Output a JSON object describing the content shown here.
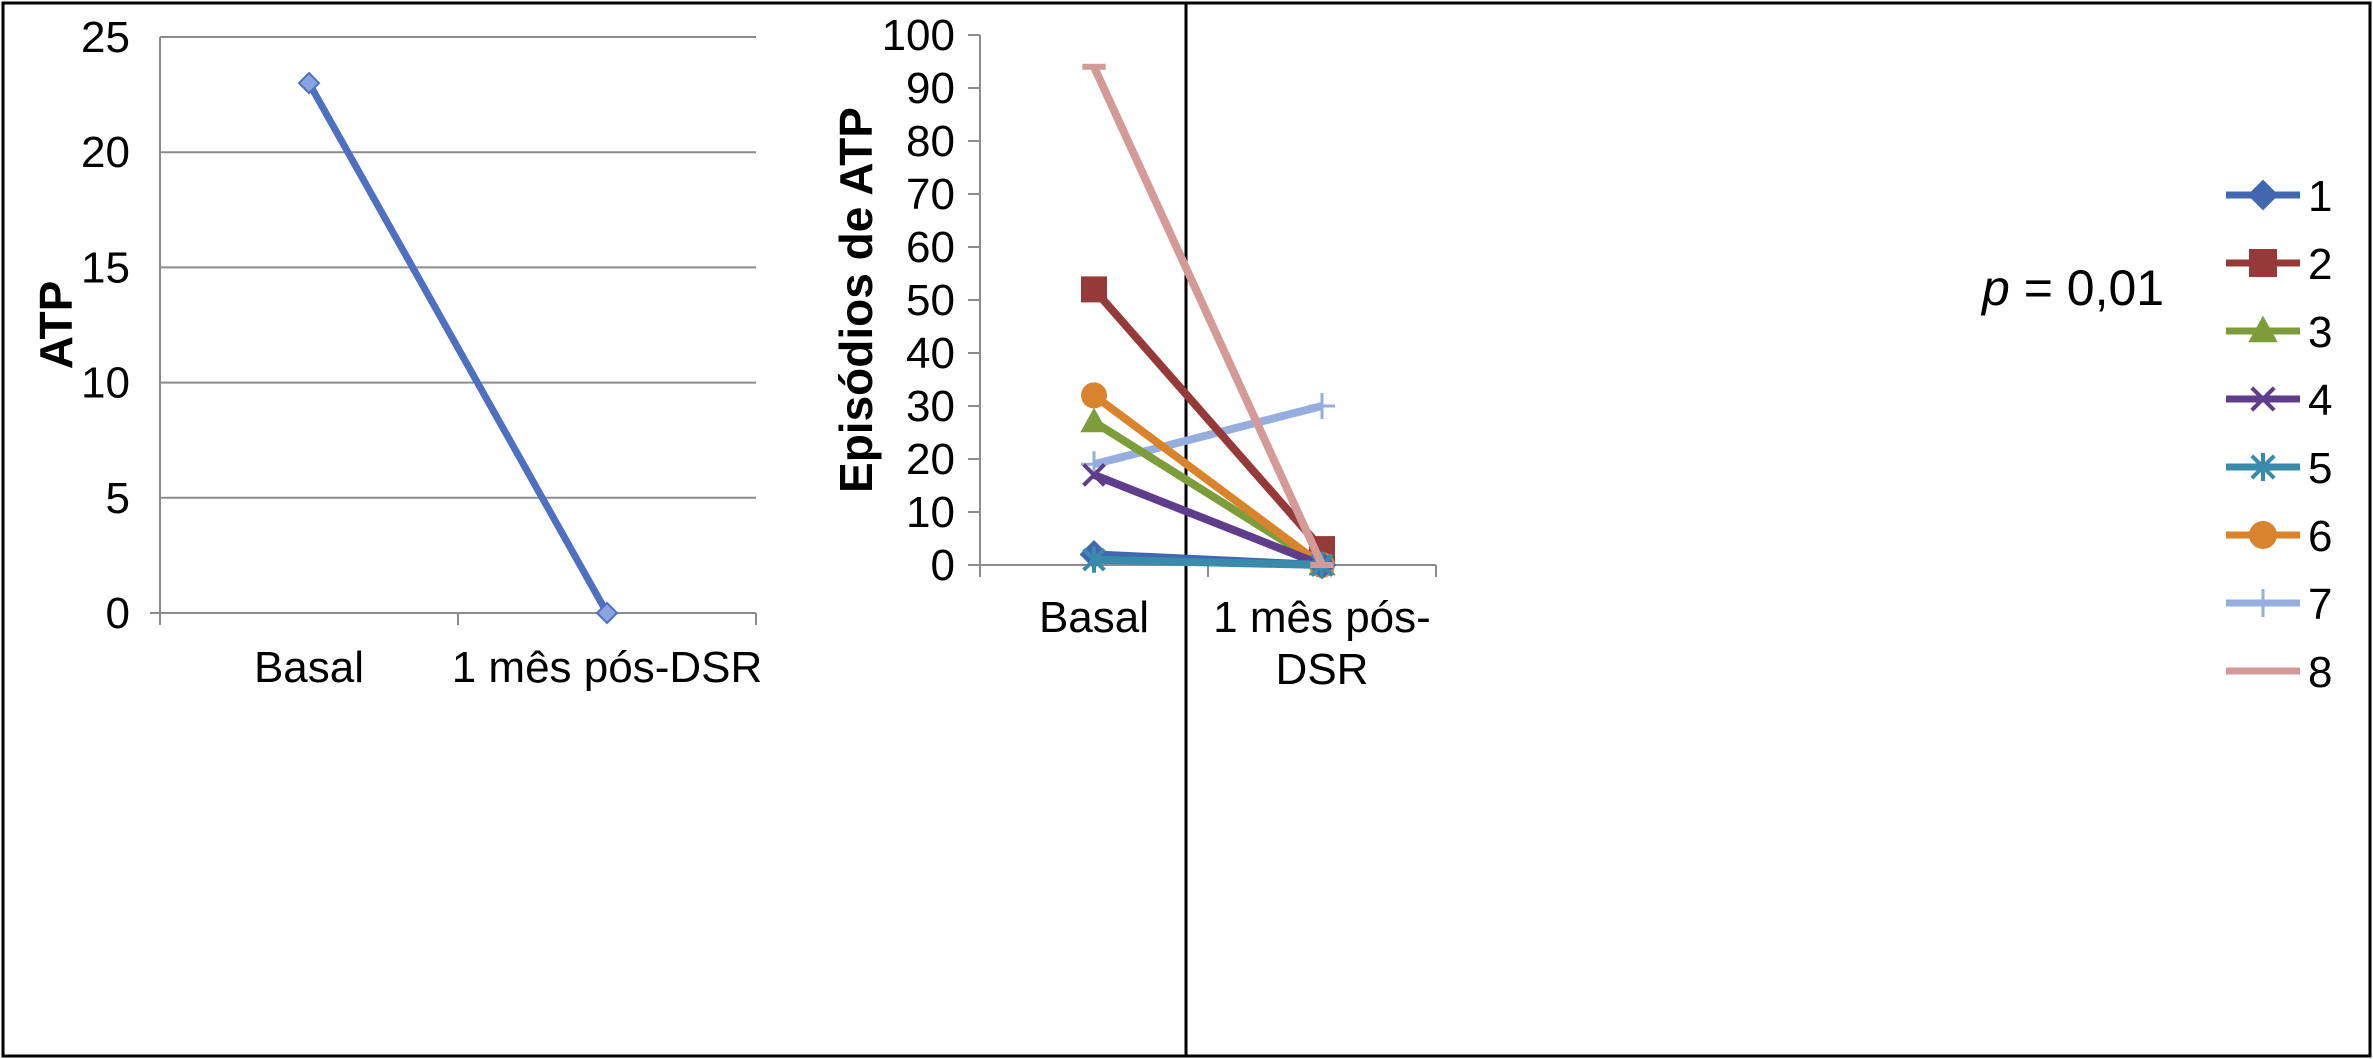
{
  "chart_data": [
    {
      "type": "line",
      "title": "",
      "xlabel": "",
      "ylabel": "ATP",
      "categories": [
        "Basal",
        "1 mês pós-DSR"
      ],
      "ylim": [
        0,
        25
      ],
      "yticks": [
        "0",
        "5",
        "10",
        "15",
        "20",
        "25"
      ],
      "grid": true,
      "series": [
        {
          "values": [
            23,
            0
          ],
          "color": "#4f6fc0",
          "marker": "diamond"
        }
      ]
    },
    {
      "type": "line",
      "title": "",
      "xlabel": "",
      "ylabel": "Episódios de ATP",
      "categories": [
        "Basal",
        "1 mês pós-DSR"
      ],
      "category_lines": [
        [
          "Basal"
        ],
        [
          "1 mês pós-",
          "DSR"
        ]
      ],
      "ylim": [
        0,
        100
      ],
      "yticks": [
        "0",
        "10",
        "20",
        "30",
        "40",
        "50",
        "60",
        "70",
        "80",
        "90",
        "100"
      ],
      "grid": false,
      "legend_position": "right",
      "annotation": {
        "italic": "p",
        "text": " = 0,01"
      },
      "series": [
        {
          "name": "1",
          "values": [
            2,
            0
          ],
          "color": "#4067b0",
          "marker": "diamond"
        },
        {
          "name": "2",
          "values": [
            52,
            3
          ],
          "color": "#963a39",
          "marker": "square"
        },
        {
          "name": "3",
          "values": [
            27,
            0
          ],
          "color": "#7c9d3a",
          "marker": "triangle"
        },
        {
          "name": "4",
          "values": [
            17,
            0
          ],
          "color": "#5f3d8a",
          "marker": "x"
        },
        {
          "name": "5",
          "values": [
            1,
            0
          ],
          "color": "#3a8bab",
          "marker": "star"
        },
        {
          "name": "6",
          "values": [
            32,
            0
          ],
          "color": "#d9832c",
          "marker": "circle"
        },
        {
          "name": "7",
          "values": [
            19,
            30
          ],
          "color": "#96aedd",
          "marker": "plus"
        },
        {
          "name": "8",
          "values": [
            94,
            0
          ],
          "color": "#d49a98",
          "marker": "dash"
        }
      ]
    }
  ]
}
